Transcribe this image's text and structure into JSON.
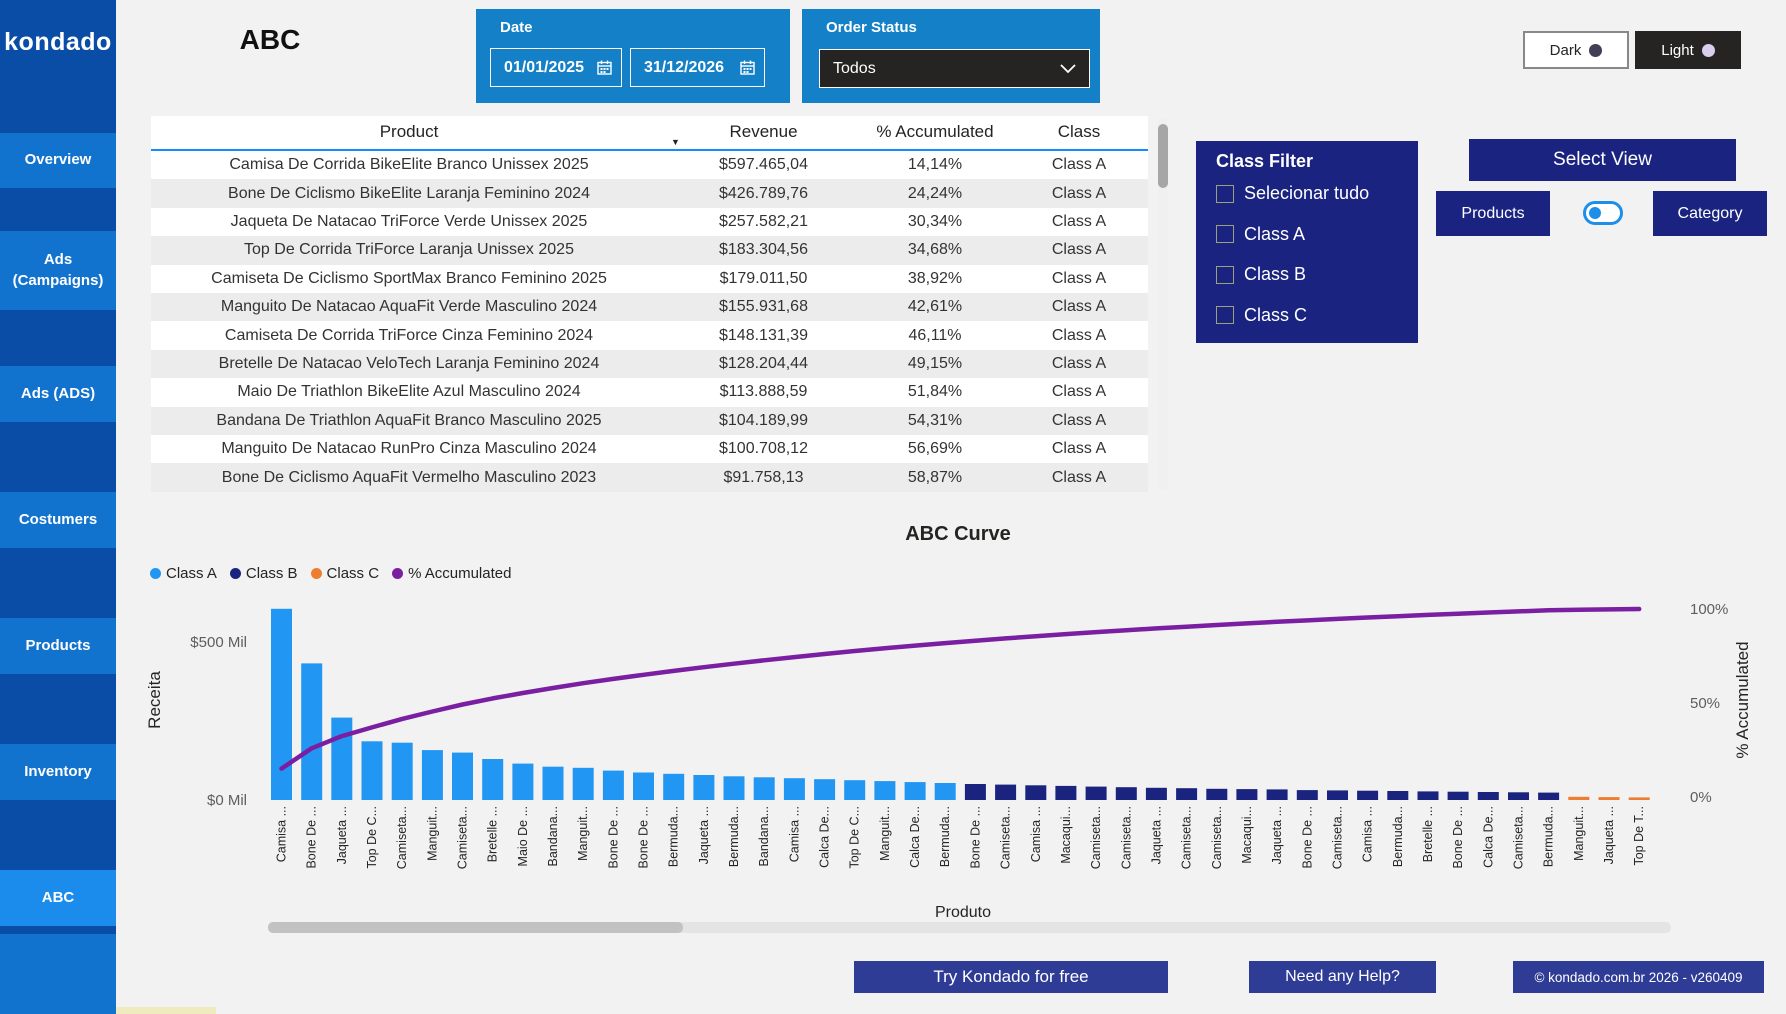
{
  "brand": {
    "logo": "kondado"
  },
  "sidebar": {
    "items": [
      {
        "label": "Overview",
        "active": false
      },
      {
        "label": "Ads (Campaigns)",
        "active": false
      },
      {
        "label": "Ads (ADS)",
        "active": false
      },
      {
        "label": "Costumers",
        "active": false
      },
      {
        "label": "Products",
        "active": false
      },
      {
        "label": "Inventory",
        "active": false
      },
      {
        "label": "ABC",
        "active": true
      }
    ]
  },
  "header": {
    "title": "ABC",
    "date_filter": {
      "label": "Date",
      "start": "01/01/2025",
      "end": "31/12/2026",
      "icon": "calendar-icon"
    },
    "order_status": {
      "label": "Order Status",
      "value": "Todos",
      "icon": "chevron-down-icon"
    },
    "theme_toggle": {
      "dark_label": "Dark",
      "light_label": "Light",
      "dark_dot_color": "#433d55",
      "light_dot_color": "#d9cdf0"
    }
  },
  "table": {
    "columns": [
      "Product",
      "Revenue",
      "% Accumulated",
      "Class"
    ],
    "sort_icon": "sort-descending-icon",
    "rows": [
      {
        "product": "Camisa De Corrida BikeElite Branco Unissex 2025",
        "revenue": "$597.465,04",
        "accumulated": "14,14%",
        "class": "Class A"
      },
      {
        "product": "Bone De Ciclismo BikeElite Laranja Feminino 2024",
        "revenue": "$426.789,76",
        "accumulated": "24,24%",
        "class": "Class A"
      },
      {
        "product": "Jaqueta De Natacao TriForce Verde Unissex 2025",
        "revenue": "$257.582,21",
        "accumulated": "30,34%",
        "class": "Class A"
      },
      {
        "product": "Top De Corrida TriForce Laranja Unissex 2025",
        "revenue": "$183.304,56",
        "accumulated": "34,68%",
        "class": "Class A"
      },
      {
        "product": "Camiseta De Ciclismo SportMax Branco Feminino 2025",
        "revenue": "$179.011,50",
        "accumulated": "38,92%",
        "class": "Class A"
      },
      {
        "product": "Manguito De Natacao AquaFit Verde Masculino 2024",
        "revenue": "$155.931,68",
        "accumulated": "42,61%",
        "class": "Class A"
      },
      {
        "product": "Camiseta De Corrida TriForce Cinza Feminino 2024",
        "revenue": "$148.131,39",
        "accumulated": "46,11%",
        "class": "Class A"
      },
      {
        "product": "Bretelle De Natacao VeloTech Laranja Feminino 2024",
        "revenue": "$128.204,44",
        "accumulated": "49,15%",
        "class": "Class A"
      },
      {
        "product": "Maio De Triathlon BikeElite Azul Masculino 2024",
        "revenue": "$113.888,59",
        "accumulated": "51,84%",
        "class": "Class A"
      },
      {
        "product": "Bandana De Triathlon AquaFit Branco Masculino 2025",
        "revenue": "$104.189,99",
        "accumulated": "54,31%",
        "class": "Class A"
      },
      {
        "product": "Manguito De Natacao RunPro Cinza Masculino 2024",
        "revenue": "$100.708,12",
        "accumulated": "56,69%",
        "class": "Class A"
      },
      {
        "product": "Bone De Ciclismo AquaFit Vermelho Masculino 2023",
        "revenue": "$91.758,13",
        "accumulated": "58,87%",
        "class": "Class A"
      }
    ]
  },
  "class_filter": {
    "title": "Class Filter",
    "options": [
      {
        "label": "Selecionar tudo",
        "checked": false
      },
      {
        "label": "Class A",
        "checked": false
      },
      {
        "label": "Class B",
        "checked": false
      },
      {
        "label": "Class C",
        "checked": false
      }
    ]
  },
  "view_selector": {
    "title": "Select View",
    "left_label": "Products",
    "right_label": "Category",
    "toggle_position": "left"
  },
  "footer": {
    "cta_label": "Try Kondado for free",
    "help_label": "Need any Help?",
    "copyright_label": "© kondado.com.br 2026 - v260409"
  },
  "chart_data": {
    "type": "bar",
    "subtype": "pareto-bar-line",
    "title": "ABC Curve",
    "xlabel": "Produto",
    "ylabel_left": "Receita",
    "ylabel_right": "% Accumulated",
    "y_left_ticks": [
      "$0 Mil",
      "$500 Mil"
    ],
    "y_right_ticks": [
      "0%",
      "50%",
      "100%"
    ],
    "y_left_range_thousands": [
      0,
      500
    ],
    "y_right_range_pct": [
      0,
      100
    ],
    "values_unit": "$ thousands",
    "legend": [
      {
        "name": "Class A",
        "color": "#2196f3"
      },
      {
        "name": "Class B",
        "color": "#1a237e"
      },
      {
        "name": "Class C",
        "color": "#ed7d31"
      },
      {
        "name": "% Accumulated",
        "color": "#7b1fa2"
      }
    ],
    "colors": {
      "A": "#2196f3",
      "B": "#1a237e",
      "C": "#ed7d31",
      "line": "#7b1fa2"
    },
    "line_series": "cumulative revenue percent, starts 14.14% ends 100%",
    "bars": [
      {
        "label": "Camisa ...",
        "value": 597.5,
        "class": "A"
      },
      {
        "label": "Bone De ...",
        "value": 426.8,
        "class": "A"
      },
      {
        "label": "Jaqueta ...",
        "value": 257.6,
        "class": "A"
      },
      {
        "label": "Top De C...",
        "value": 183.3,
        "class": "A"
      },
      {
        "label": "Camiseta...",
        "value": 179.0,
        "class": "A"
      },
      {
        "label": "Manguit...",
        "value": 155.9,
        "class": "A"
      },
      {
        "label": "Camiseta...",
        "value": 148.1,
        "class": "A"
      },
      {
        "label": "Bretelle ...",
        "value": 128.2,
        "class": "A"
      },
      {
        "label": "Maio De ...",
        "value": 113.9,
        "class": "A"
      },
      {
        "label": "Bandana...",
        "value": 104.2,
        "class": "A"
      },
      {
        "label": "Manguit...",
        "value": 100.7,
        "class": "A"
      },
      {
        "label": "Bone De ...",
        "value": 91.8,
        "class": "A"
      },
      {
        "label": "Bone De ...",
        "value": 86,
        "class": "A"
      },
      {
        "label": "Bermuda...",
        "value": 82,
        "class": "A"
      },
      {
        "label": "Jaqueta ...",
        "value": 78,
        "class": "A"
      },
      {
        "label": "Bermuda...",
        "value": 74,
        "class": "A"
      },
      {
        "label": "Bandana...",
        "value": 71,
        "class": "A"
      },
      {
        "label": "Camisa ...",
        "value": 68,
        "class": "A"
      },
      {
        "label": "Calca De...",
        "value": 65,
        "class": "A"
      },
      {
        "label": "Top De C...",
        "value": 62,
        "class": "A"
      },
      {
        "label": "Manguit...",
        "value": 59,
        "class": "A"
      },
      {
        "label": "Calca De...",
        "value": 56,
        "class": "A"
      },
      {
        "label": "Bermuda...",
        "value": 53,
        "class": "A"
      },
      {
        "label": "Bone De ...",
        "value": 50,
        "class": "B"
      },
      {
        "label": "Camiseta...",
        "value": 48,
        "class": "B"
      },
      {
        "label": "Camisa ...",
        "value": 46,
        "class": "B"
      },
      {
        "label": "Macaqui...",
        "value": 44,
        "class": "B"
      },
      {
        "label": "Camiseta...",
        "value": 42,
        "class": "B"
      },
      {
        "label": "Camiseta...",
        "value": 40,
        "class": "B"
      },
      {
        "label": "Jaqueta ...",
        "value": 38,
        "class": "B"
      },
      {
        "label": "Camiseta...",
        "value": 37,
        "class": "B"
      },
      {
        "label": "Camiseta...",
        "value": 35,
        "class": "B"
      },
      {
        "label": "Macaqui...",
        "value": 34,
        "class": "B"
      },
      {
        "label": "Jaqueta ...",
        "value": 33,
        "class": "B"
      },
      {
        "label": "Bone De ...",
        "value": 31,
        "class": "B"
      },
      {
        "label": "Camiseta...",
        "value": 30,
        "class": "B"
      },
      {
        "label": "Camisa ...",
        "value": 29,
        "class": "B"
      },
      {
        "label": "Bermuda...",
        "value": 28,
        "class": "B"
      },
      {
        "label": "Bretelle ...",
        "value": 27,
        "class": "B"
      },
      {
        "label": "Bone De ...",
        "value": 26,
        "class": "B"
      },
      {
        "label": "Calca De...",
        "value": 25,
        "class": "B"
      },
      {
        "label": "Camiseta...",
        "value": 24,
        "class": "B"
      },
      {
        "label": "Bermuda...",
        "value": 23,
        "class": "B"
      },
      {
        "label": "Manguit...",
        "value": 10,
        "class": "C"
      },
      {
        "label": "Jaqueta ...",
        "value": 9,
        "class": "C"
      },
      {
        "label": "Top De T...",
        "value": 8,
        "class": "C"
      }
    ]
  }
}
